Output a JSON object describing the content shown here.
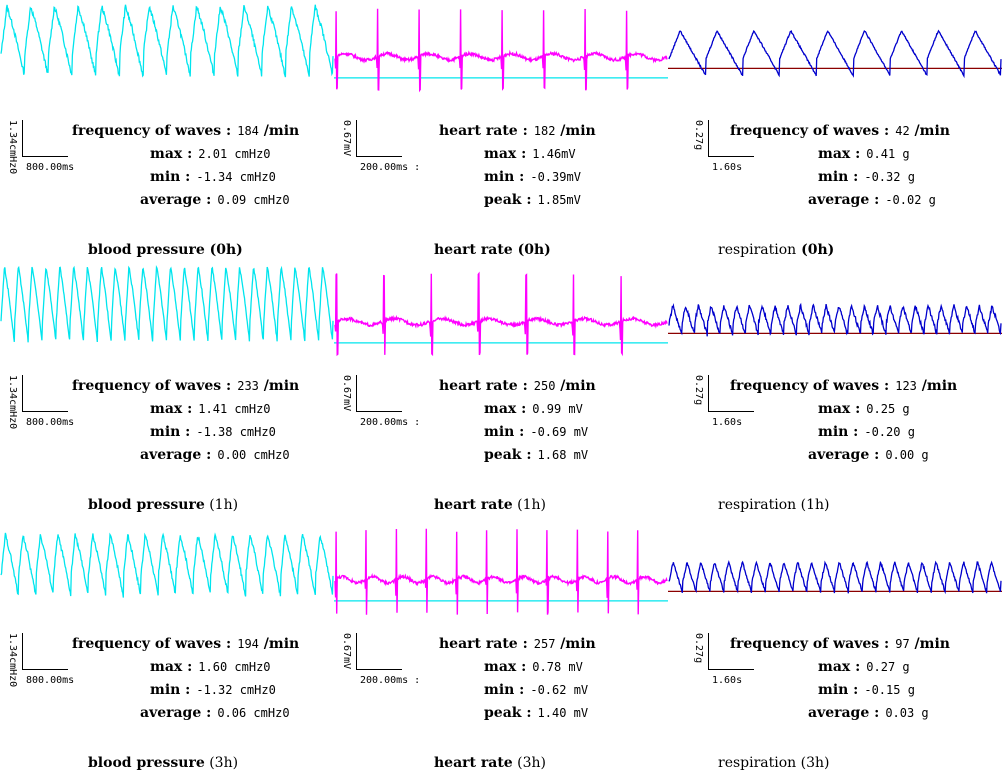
{
  "panels": [
    {
      "row": 0,
      "col": 0,
      "kind": "bp",
      "color": "#00e5ee",
      "baseline_color": "",
      "freq": 14,
      "amp": 0.8,
      "noise": 0.08,
      "scale_v": "1.34cmHz0",
      "scale_h": "800.00ms",
      "stats": [
        {
          "k": "frequency of waves :",
          "v": "184",
          "u": "/min"
        },
        {
          "k": "max :",
          "v": "2.01 cmHz0"
        },
        {
          "k": "min :",
          "v": "-1.34 cmHz0"
        },
        {
          "k": "average :",
          "v": "0.09 cmHz0"
        }
      ],
      "title_name": "blood pressure",
      "title_time": "(0h)"
    },
    {
      "row": 0,
      "col": 1,
      "kind": "ecg",
      "color": "#ff00ff",
      "baseline_color": "#00e5ee",
      "freq": 8,
      "amp": 0.9,
      "noise": 0.1,
      "scale_v": "0.67mV",
      "scale_h": "200.00ms :",
      "stats": [
        {
          "k": "heart rate :",
          "v": "182",
          "u": "/min"
        },
        {
          "k": "max :",
          "v": "1.46mV"
        },
        {
          "k": "min :",
          "v": "-0.39mV"
        },
        {
          "k": "peak :",
          "v": "1.85mV"
        }
      ],
      "title_name": "heart rate",
      "title_time": "(0h)"
    },
    {
      "row": 0,
      "col": 2,
      "kind": "resp",
      "color": "#0000cc",
      "baseline_color": "#8b0000",
      "freq": 9,
      "amp": 0.85,
      "noise": 0.05,
      "scale_v": "0.27g",
      "scale_h": "1.60s",
      "stats": [
        {
          "k": "frequency of waves :",
          "v": "42",
          "u": "/min"
        },
        {
          "k": "max :",
          "v": "0.41 g"
        },
        {
          "k": "min :",
          "v": "-0.32 g"
        },
        {
          "k": "average :",
          "v": "-0.02 g"
        }
      ],
      "title_name": "respiration",
      "title_time": "(0h)"
    },
    {
      "row": 1,
      "col": 0,
      "kind": "bp",
      "color": "#00e5ee",
      "baseline_color": "",
      "freq": 24,
      "amp": 0.9,
      "noise": 0.05,
      "scale_v": "1.34cmHz0",
      "scale_h": "800.00ms",
      "stats": [
        {
          "k": "frequency of waves :",
          "v": "233",
          "u": "/min"
        },
        {
          "k": "max :",
          "v": "1.41 cmHz0"
        },
        {
          "k": "min :",
          "v": "-1.38 cmHz0"
        },
        {
          "k": "average :",
          "v": "0.00 cmHz0"
        }
      ],
      "title_name": "blood pressure",
      "title_time": "(1h)"
    },
    {
      "row": 1,
      "col": 1,
      "kind": "ecg",
      "color": "#ff00ff",
      "baseline_color": "#00e5ee",
      "freq": 7,
      "amp": 0.9,
      "noise": 0.1,
      "scale_v": "0.67mV",
      "scale_h": "200.00ms :",
      "stats": [
        {
          "k": "heart rate :",
          "v": "250",
          "u": "/min"
        },
        {
          "k": "max :",
          "v": "0.99 mV"
        },
        {
          "k": "min :",
          "v": "-0.69 mV"
        },
        {
          "k": "peak :",
          "v": "1.68 mV"
        }
      ],
      "title_name": "heart rate",
      "title_time": "(1h)"
    },
    {
      "row": 1,
      "col": 2,
      "kind": "resp",
      "color": "#0000cc",
      "baseline_color": "#8b0000",
      "freq": 26,
      "amp": 0.55,
      "noise": 0.12,
      "scale_v": "0.27g",
      "scale_h": "1.60s",
      "stats": [
        {
          "k": "frequency of waves :",
          "v": "123",
          "u": "/min"
        },
        {
          "k": "max :",
          "v": "0.25 g"
        },
        {
          "k": "min :",
          "v": "-0.20 g"
        },
        {
          "k": "average :",
          "v": "0.00 g"
        }
      ],
      "title_name": "respiration",
      "title_time": "(1h)"
    },
    {
      "row": 2,
      "col": 0,
      "kind": "bp",
      "color": "#00e5ee",
      "baseline_color": "",
      "freq": 19,
      "amp": 0.7,
      "noise": 0.07,
      "scale_v": "1.34cmHz0",
      "scale_h": "800.00ms",
      "stats": [
        {
          "k": "frequency of waves :",
          "v": "194",
          "u": "/min"
        },
        {
          "k": "max :",
          "v": "1.60 cmHz0"
        },
        {
          "k": "min :",
          "v": "-1.32 cmHz0"
        },
        {
          "k": "average :",
          "v": "0.06 cmHz0"
        }
      ],
      "title_name": "blood pressure",
      "title_time": "(3h)"
    },
    {
      "row": 2,
      "col": 1,
      "kind": "ecg",
      "color": "#ff00ff",
      "baseline_color": "#00e5ee",
      "freq": 11,
      "amp": 0.95,
      "noise": 0.1,
      "scale_v": "0.67mV",
      "scale_h": "200.00ms :",
      "stats": [
        {
          "k": "heart rate :",
          "v": "257",
          "u": "/min"
        },
        {
          "k": "max :",
          "v": "0.78 mV"
        },
        {
          "k": "min :",
          "v": "-0.62 mV"
        },
        {
          "k": "peak :",
          "v": "1.40 mV"
        }
      ],
      "title_name": "heart rate",
      "title_time": "(3h)"
    },
    {
      "row": 2,
      "col": 2,
      "kind": "resp",
      "color": "#0000cc",
      "baseline_color": "#8b0000",
      "freq": 24,
      "amp": 0.6,
      "noise": 0.08,
      "scale_v": "0.27g",
      "scale_h": "1.60s",
      "stats": [
        {
          "k": "frequency of waves :",
          "v": "97",
          "u": "/min"
        },
        {
          "k": "max :",
          "v": "0.27 g"
        },
        {
          "k": "min :",
          "v": "-0.15 g"
        },
        {
          "k": "average :",
          "v": "0.03 g"
        }
      ],
      "title_name": "respiration",
      "title_time": "(3h)"
    }
  ]
}
